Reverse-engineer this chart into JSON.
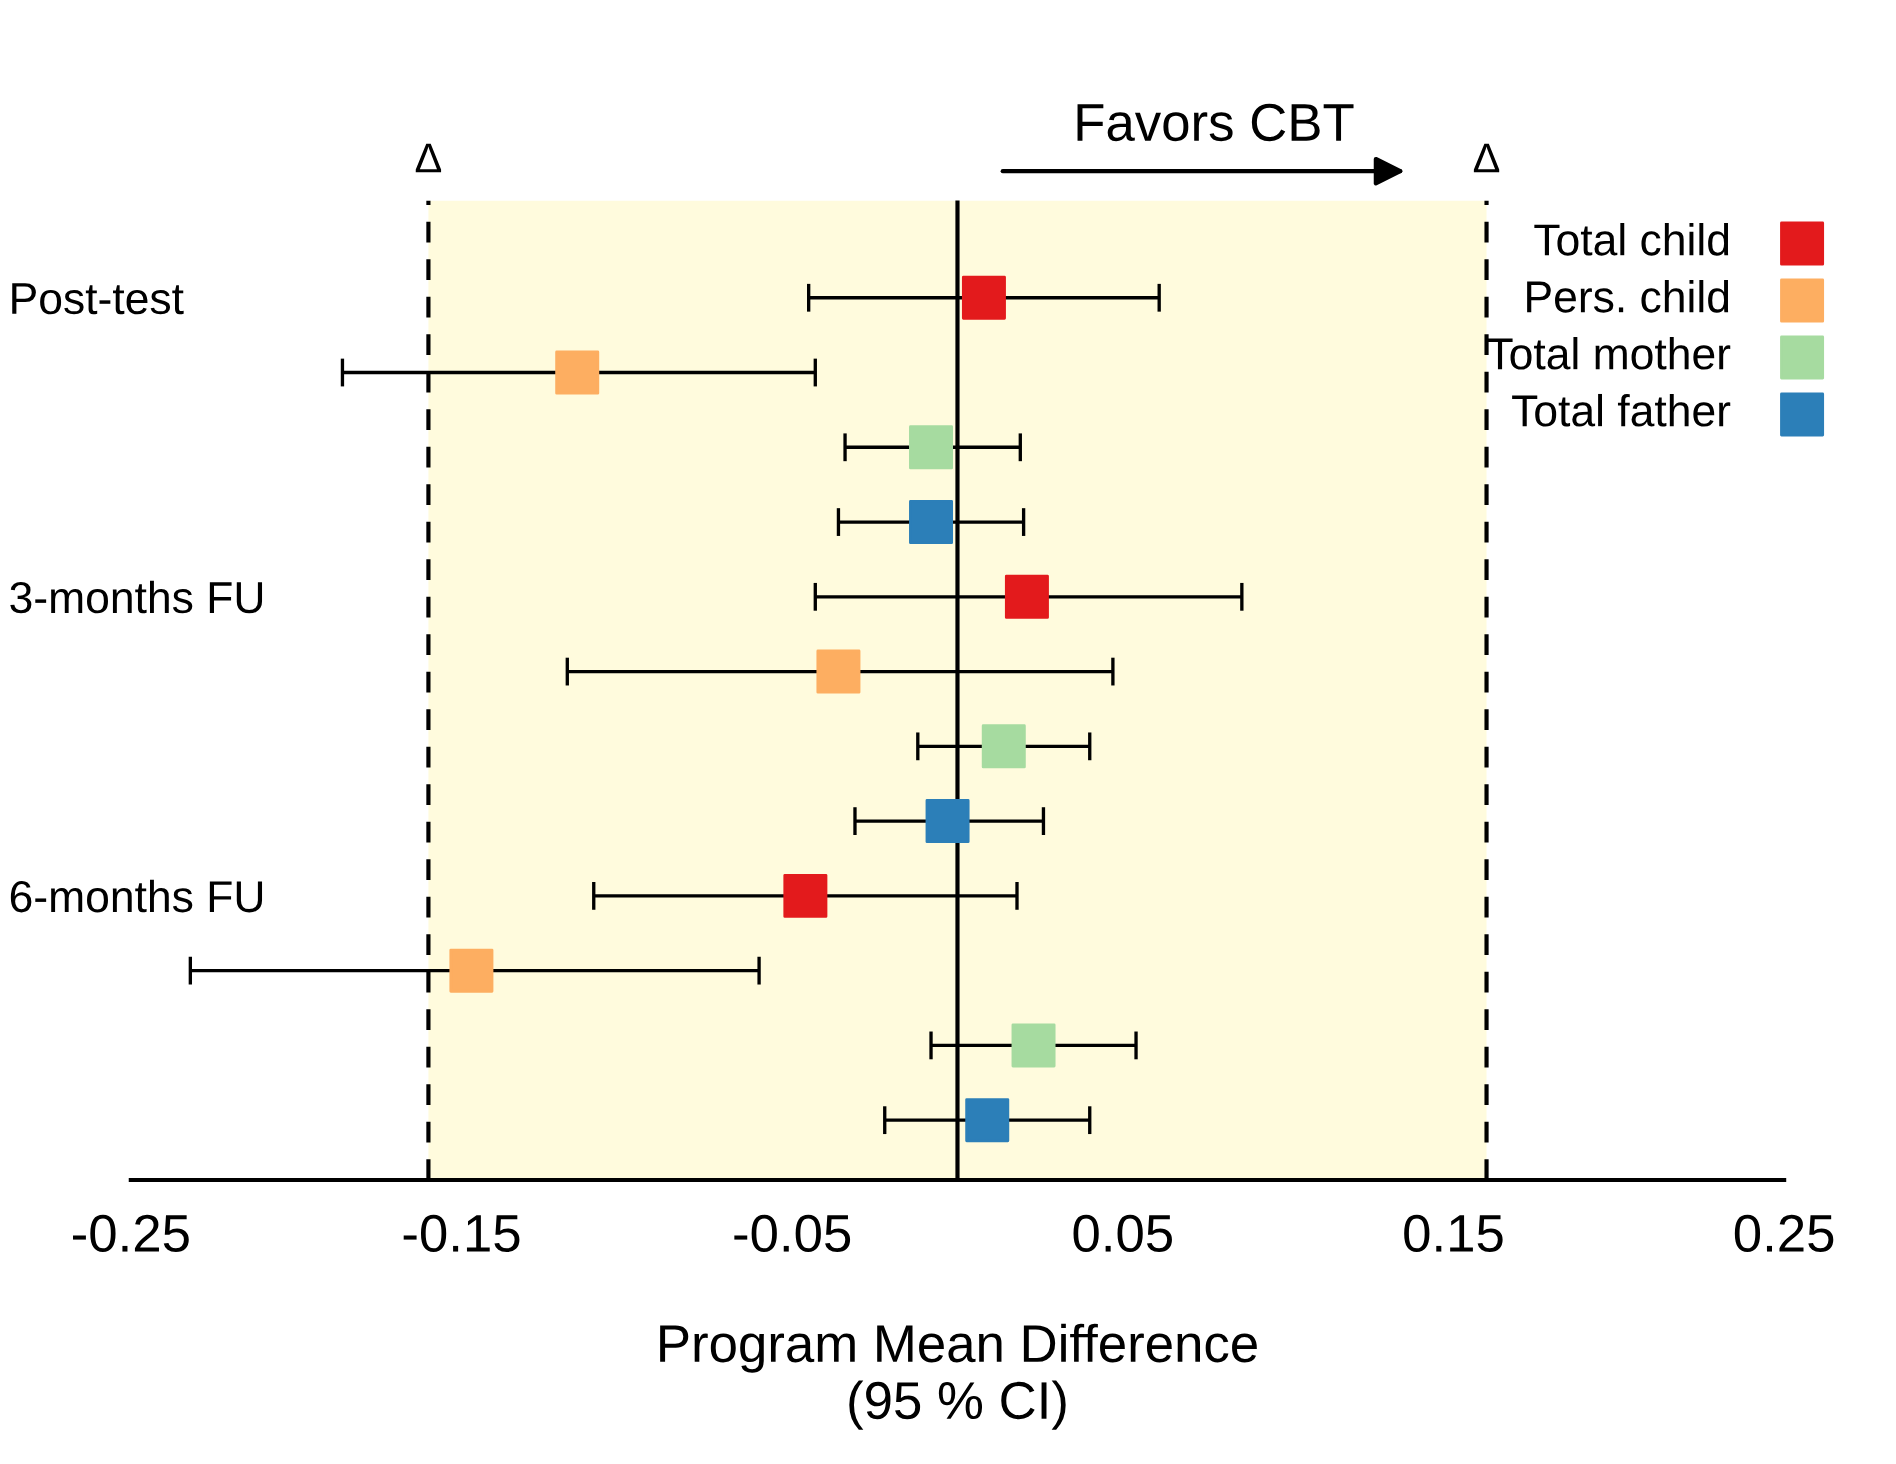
{
  "chart_data": {
    "type": "scatter",
    "orientation": "horizontal",
    "categories": [
      "Post-test",
      null,
      null,
      null,
      "3-months FU",
      null,
      null,
      null,
      "6-months FU",
      null,
      null,
      null
    ],
    "series": [
      {
        "name": "Total child",
        "color": "#e31a1c",
        "values": [
          0.008,
          null,
          null,
          null,
          0.021,
          null,
          null,
          null,
          -0.046,
          null,
          null,
          null
        ],
        "errors": [
          [
            -0.045,
            0.061
          ],
          null,
          null,
          null,
          [
            -0.043,
            0.086
          ],
          null,
          null,
          null,
          [
            -0.11,
            0.018
          ],
          null,
          null,
          null
        ]
      },
      {
        "name": "Pers. child",
        "color": "#fdae61",
        "values": [
          null,
          -0.115,
          null,
          null,
          null,
          -0.036,
          null,
          null,
          null,
          -0.147,
          null,
          null
        ],
        "errors": [
          null,
          [
            -0.186,
            -0.043
          ],
          null,
          null,
          null,
          [
            -0.118,
            0.047
          ],
          null,
          null,
          null,
          [
            -0.232,
            -0.06
          ],
          null,
          null
        ]
      },
      {
        "name": "Total mother",
        "color": "#a6dba0",
        "values": [
          null,
          null,
          -0.008,
          null,
          null,
          null,
          0.014,
          null,
          null,
          null,
          0.023,
          null
        ],
        "errors": [
          null,
          null,
          [
            -0.034,
            0.019
          ],
          null,
          null,
          null,
          [
            -0.012,
            0.04
          ],
          null,
          null,
          null,
          [
            -0.008,
            0.054
          ],
          null
        ]
      },
      {
        "name": "Total father",
        "color": "#2c7fb8",
        "values": [
          null,
          null,
          null,
          -0.008,
          null,
          null,
          null,
          -0.003,
          null,
          null,
          null,
          0.009
        ],
        "errors": [
          null,
          null,
          null,
          [
            -0.036,
            0.02
          ],
          null,
          null,
          null,
          [
            -0.031,
            0.026
          ],
          null,
          null,
          null,
          [
            -0.022,
            0.04
          ]
        ]
      }
    ],
    "xlim": [
      -0.25,
      0.25
    ],
    "xticks": [
      -0.25,
      -0.15,
      -0.05,
      0.05,
      0.15,
      0.25
    ],
    "xlabel": "Program Mean Difference\n(95 % CI)",
    "ref_lines": [
      {
        "axis": "x",
        "value": 0,
        "color": "#000000",
        "line_style": "solid"
      },
      {
        "axis": "x",
        "value": -0.16,
        "label": "Δ",
        "color": "#000000",
        "line_style": "dashed"
      },
      {
        "axis": "x",
        "value": 0.16,
        "label": "Δ",
        "color": "#000000",
        "line_style": "dashed"
      }
    ],
    "bands": [
      {
        "axis": "x",
        "from": -0.16,
        "to": 0.16,
        "color": "#fffbdd"
      }
    ],
    "annotations": [
      "Favors CBT"
    ],
    "marker": "square",
    "grid": false,
    "legend": "top right"
  }
}
